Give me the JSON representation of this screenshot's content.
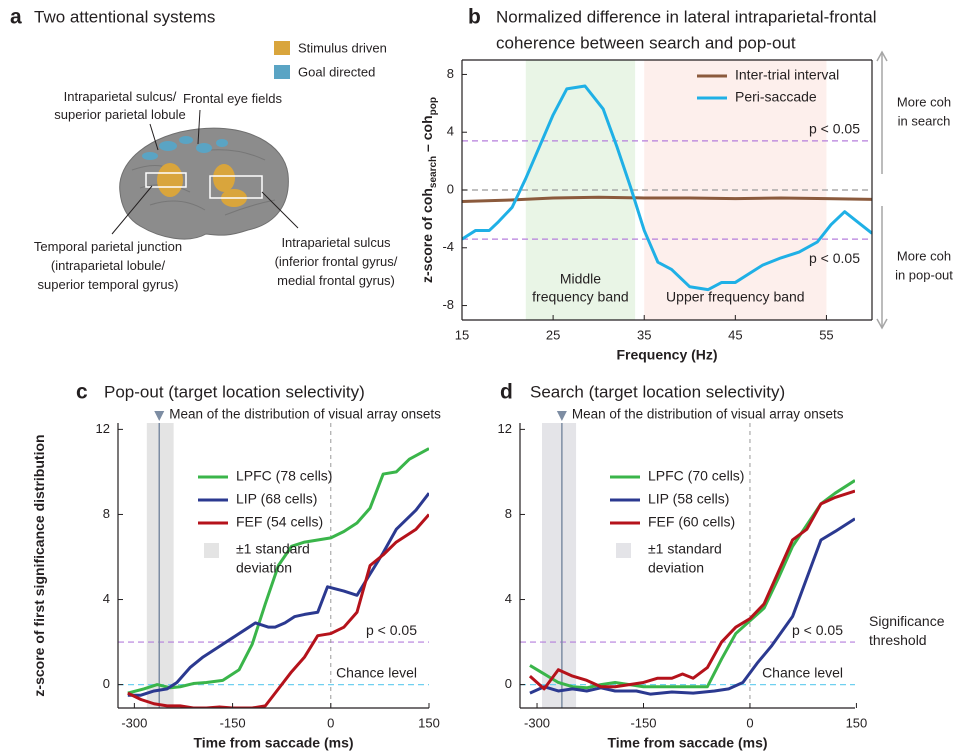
{
  "diagram": {
    "letter": "a",
    "title": "Two attentional systems",
    "legend": [
      {
        "label": "Stimulus driven",
        "color": "#d9a53c"
      },
      {
        "label": "Goal directed",
        "color": "#5aa4c4"
      }
    ],
    "labels": [
      {
        "lines": [
          "Intraparietal sulcus/",
          "superior parietal lobule"
        ]
      },
      {
        "lines": [
          "Frontal eye fields"
        ]
      },
      {
        "lines": [
          "Temporal parietal junction",
          "(intraparietal lobule/",
          "superior temporal gyrus)"
        ]
      },
      {
        "lines": [
          "Intraparietal sulcus",
          "(inferior frontal gyrus/",
          "medial frontal gyrus)"
        ]
      }
    ]
  },
  "chart_data": [
    {
      "type": "line",
      "letter": "b",
      "title": [
        "Normalized difference in lateral intraparietal-frontal",
        "coherence between search and pop-out"
      ],
      "xlabel": "Frequency (Hz)",
      "ylabel": [
        "z-score of coh",
        "search",
        " – coh",
        "pop"
      ],
      "xlim": [
        15,
        60
      ],
      "ylim": [
        -9,
        9
      ],
      "xticks": [
        15,
        25,
        35,
        45,
        55
      ],
      "yticks": [
        -8,
        -4,
        0,
        4,
        8
      ],
      "legend": "upper right",
      "bands": [
        {
          "range": [
            22,
            34
          ],
          "color": "#e9f5e6",
          "label": [
            "Middle",
            "frequency band"
          ],
          "label_color": "#8fcf8a"
        },
        {
          "range": [
            35,
            55
          ],
          "color": "#fdefec",
          "label": [
            "Upper frequency band"
          ],
          "label_color": "#f4b3a4"
        }
      ],
      "hlines": [
        {
          "value": 3.4,
          "color": "#b57edc",
          "label": "p < 0.05"
        },
        {
          "value": -3.4,
          "color": "#b57edc",
          "label": "p < 0.05"
        },
        {
          "value": 0,
          "color": "#999999"
        }
      ],
      "side_arrows": [
        {
          "direction": "up",
          "label": [
            "More coh",
            "in search"
          ]
        },
        {
          "direction": "down",
          "label": [
            "More coh",
            "in pop-out"
          ]
        }
      ],
      "series": [
        {
          "name": "Inter-trial interval",
          "color": "#8b5a3c",
          "x": [
            15,
            20,
            25,
            30,
            35,
            40,
            45,
            50,
            55,
            60
          ],
          "values": [
            -0.8,
            -0.7,
            -0.55,
            -0.5,
            -0.55,
            -0.55,
            -0.6,
            -0.55,
            -0.6,
            -0.65
          ]
        },
        {
          "name": "Peri-saccade",
          "color": "#1fb0e6",
          "x": [
            15,
            16.5,
            18,
            19,
            20.5,
            22,
            23.5,
            25,
            26.5,
            28.5,
            30.5,
            32,
            33.5,
            35,
            36.5,
            38,
            40,
            42,
            43.5,
            45,
            46.5,
            48,
            50,
            52,
            54,
            55.5,
            57,
            58,
            60
          ],
          "values": [
            -3.4,
            -2.8,
            -2.8,
            -2.2,
            -1.2,
            0.8,
            3,
            5.2,
            7,
            7.2,
            5.6,
            3,
            0.2,
            -2.8,
            -5,
            -5.5,
            -6.7,
            -6.9,
            -6.4,
            -6.4,
            -5.8,
            -5.2,
            -4.7,
            -4.3,
            -3.6,
            -2.4,
            -1.5,
            -2,
            -3
          ]
        }
      ]
    },
    {
      "type": "line",
      "letter": "c",
      "title": [
        "Pop-out (target location selectivity)"
      ],
      "xlabel": "Time from saccade (ms)",
      "ylabel": [
        "z-score of first significance distribution"
      ],
      "xlim": [
        -325,
        150
      ],
      "ylim": [
        -1.1,
        12.3
      ],
      "xticks": [
        -300,
        -150,
        0,
        150
      ],
      "yticks": [
        0,
        4,
        8,
        12
      ],
      "legend": "upper left",
      "bands": [
        {
          "range": [
            -281,
            -240
          ],
          "color": "#e4e4e4"
        }
      ],
      "band_legend": [
        "±1 standard",
        "deviation"
      ],
      "vlines": [
        {
          "value": -262,
          "color": "#7d8da3",
          "label": "Mean of the distribution of visual array onsets"
        },
        {
          "value": 0,
          "color": "#999999"
        }
      ],
      "hlines": [
        {
          "value": 2,
          "color": "#b57edc",
          "label": "p < 0.05"
        },
        {
          "value": 0,
          "color": "#6fd0f0",
          "label": "Chance level"
        }
      ],
      "series": [
        {
          "name": "LPFC (78 cells)",
          "color": "#3ab54a",
          "x": [
            -310,
            -285,
            -265,
            -245,
            -230,
            -210,
            -190,
            -165,
            -140,
            -120,
            -100,
            -80,
            -60,
            -40,
            -20,
            0,
            20,
            40,
            60,
            80,
            100,
            120,
            150
          ],
          "values": [
            -0.4,
            -0.2,
            0,
            -0.15,
            -0.1,
            0.05,
            0.1,
            0.2,
            0.7,
            1.9,
            3.8,
            5.6,
            6.5,
            6.7,
            6.8,
            6.9,
            7.2,
            7.6,
            8.3,
            9.9,
            10,
            10.6,
            11.1
          ]
        },
        {
          "name": "LIP (68 cells)",
          "color": "#2b3990",
          "x": [
            -310,
            -290,
            -270,
            -250,
            -235,
            -215,
            -195,
            -170,
            -150,
            -130,
            -115,
            -95,
            -85,
            -70,
            -55,
            -40,
            -20,
            -5,
            20,
            40,
            60,
            80,
            100,
            130,
            150
          ],
          "values": [
            -0.5,
            -0.5,
            -0.3,
            -0.2,
            0.1,
            0.8,
            1.3,
            1.8,
            2.2,
            2.6,
            2.9,
            2.7,
            2.7,
            2.9,
            3.2,
            3.3,
            3.4,
            4.6,
            4.4,
            4.2,
            5.2,
            6.2,
            7.3,
            8.2,
            9
          ]
        },
        {
          "name": "FEF (54 cells)",
          "color": "#b5121b",
          "x": [
            -310,
            -290,
            -270,
            -250,
            -230,
            -210,
            -190,
            -170,
            -150,
            -120,
            -100,
            -80,
            -60,
            -40,
            -20,
            0,
            20,
            40,
            60,
            80,
            100,
            130,
            150
          ],
          "values": [
            -0.4,
            -0.7,
            -0.9,
            -1,
            -1,
            -1.1,
            -1.1,
            -1.05,
            -1.1,
            -1.1,
            -1,
            -0.2,
            0.6,
            1.3,
            2.3,
            2.4,
            2.7,
            3.4,
            5.6,
            6.1,
            6.7,
            7.3,
            8
          ]
        }
      ]
    },
    {
      "type": "line",
      "letter": "d",
      "title": [
        "Search (target location selectivity)"
      ],
      "xlabel": "Time from saccade (ms)",
      "xlim": [
        -324,
        148
      ],
      "ylim": [
        -1.1,
        12.3
      ],
      "xticks": [
        -300,
        -150,
        0,
        150
      ],
      "yticks": [
        0,
        4,
        8,
        12
      ],
      "legend": "upper left",
      "bands": [
        {
          "range": [
            -293,
            -245
          ],
          "color": "#e4e4e8"
        }
      ],
      "band_legend": [
        "±1 standard",
        "deviation"
      ],
      "vlines": [
        {
          "value": -265,
          "color": "#7d8da3",
          "label": "Mean of the distribution of visual array onsets"
        },
        {
          "value": 0,
          "color": "#999999"
        }
      ],
      "hlines": [
        {
          "value": 2,
          "color": "#b57edc",
          "label": "p < 0.05",
          "side_label": [
            "Significance",
            "threshold"
          ]
        },
        {
          "value": 0,
          "color": "#6fd0f0",
          "label": "Chance level"
        }
      ],
      "series": [
        {
          "name": "LPFC (70 cells)",
          "color": "#3ab54a",
          "x": [
            -310,
            -290,
            -270,
            -250,
            -230,
            -210,
            -190,
            -170,
            -150,
            -120,
            -90,
            -60,
            -40,
            -20,
            0,
            20,
            40,
            60,
            80,
            100,
            120,
            148
          ],
          "values": [
            0.9,
            0.5,
            0.1,
            -0.1,
            -0.15,
            0,
            0.1,
            0,
            -0.1,
            -0.1,
            -0.1,
            -0.1,
            1.2,
            2.4,
            3,
            3.6,
            5,
            6.5,
            7.5,
            8.5,
            9,
            9.6
          ]
        },
        {
          "name": "LIP (58 cells)",
          "color": "#2b3990",
          "x": [
            -310,
            -290,
            -270,
            -250,
            -230,
            -210,
            -190,
            -160,
            -140,
            -110,
            -80,
            -50,
            -30,
            -10,
            10,
            30,
            60,
            80,
            100,
            120,
            148
          ],
          "values": [
            -0.4,
            -0.1,
            -0.3,
            -0.2,
            -0.3,
            -0.15,
            -0.3,
            -0.3,
            -0.45,
            -0.35,
            -0.4,
            -0.3,
            -0.2,
            0.1,
            1,
            1.8,
            3.2,
            5,
            6.8,
            7.2,
            7.8
          ]
        },
        {
          "name": "FEF (60 cells)",
          "color": "#b5121b",
          "x": [
            -310,
            -290,
            -270,
            -250,
            -230,
            -210,
            -190,
            -170,
            -150,
            -130,
            -110,
            -95,
            -80,
            -60,
            -40,
            -20,
            0,
            20,
            40,
            60,
            80,
            100,
            120,
            148
          ],
          "values": [
            0.4,
            -0.2,
            0.7,
            0.4,
            0.2,
            -0.1,
            -0.1,
            0,
            0.1,
            0.3,
            0.3,
            0.5,
            0.3,
            0.8,
            2,
            2.7,
            3.1,
            3.8,
            5.3,
            6.8,
            7.3,
            8.5,
            8.8,
            9.1
          ]
        }
      ]
    }
  ]
}
